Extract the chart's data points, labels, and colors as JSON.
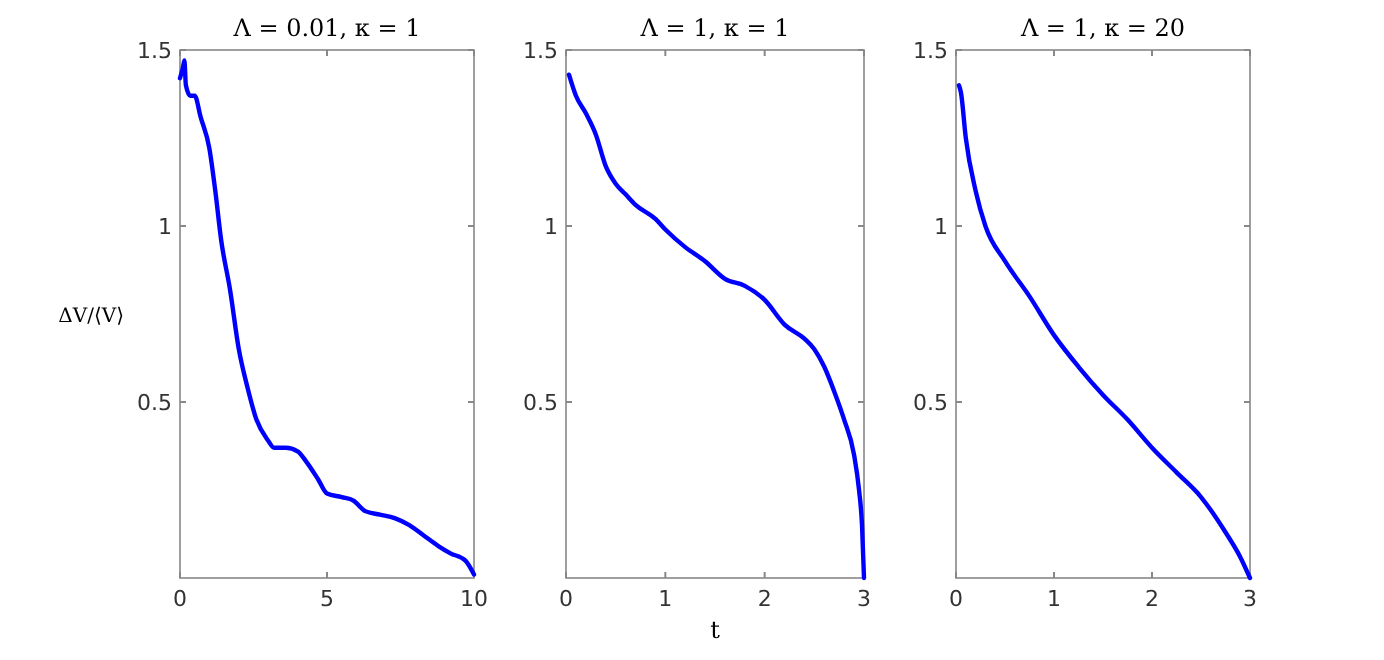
{
  "chart_data": [
    {
      "type": "line",
      "title": "Λ = 0.01, κ = 1",
      "ylabel": "ΔV/⟨V⟩",
      "xlim": [
        0,
        10
      ],
      "xticks": [
        0,
        5,
        10
      ],
      "ylim": [
        0,
        1.5
      ],
      "yticks": [
        0.5,
        1,
        1.5
      ],
      "grid": false,
      "series": [
        {
          "color": "#0000ff",
          "x": [
            0,
            0.1,
            0.15,
            0.2,
            0.35,
            0.5,
            0.7,
            1.0,
            1.2,
            1.4,
            1.7,
            2.0,
            2.3,
            2.6,
            3.0,
            3.2,
            3.6,
            4.0,
            4.3,
            4.7,
            5.0,
            5.5,
            5.9,
            6.3,
            6.8,
            7.3,
            7.8,
            8.3,
            8.8,
            9.2,
            9.7,
            10
          ],
          "values": [
            1.42,
            1.45,
            1.47,
            1.4,
            1.37,
            1.37,
            1.31,
            1.22,
            1.1,
            0.96,
            0.82,
            0.65,
            0.54,
            0.45,
            0.39,
            0.37,
            0.37,
            0.36,
            0.33,
            0.28,
            0.24,
            0.23,
            0.22,
            0.19,
            0.18,
            0.17,
            0.15,
            0.12,
            0.09,
            0.07,
            0.05,
            0.01
          ]
        }
      ]
    },
    {
      "type": "line",
      "title": "Λ = 1, κ = 1",
      "xlabel": "t",
      "xlim": [
        0,
        3
      ],
      "xticks": [
        0,
        1,
        2,
        3
      ],
      "ylim": [
        0,
        1.5
      ],
      "yticks": [
        0.5,
        1,
        1.5
      ],
      "grid": false,
      "series": [
        {
          "color": "#0000ff",
          "x": [
            0.03,
            0.1,
            0.2,
            0.3,
            0.4,
            0.5,
            0.6,
            0.7,
            0.9,
            1.0,
            1.2,
            1.4,
            1.6,
            1.8,
            2.0,
            2.2,
            2.4,
            2.5,
            2.6,
            2.7,
            2.8,
            2.9,
            2.95,
            2.98,
            3.0
          ],
          "values": [
            1.43,
            1.37,
            1.32,
            1.26,
            1.17,
            1.12,
            1.09,
            1.06,
            1.02,
            0.99,
            0.94,
            0.9,
            0.85,
            0.83,
            0.79,
            0.72,
            0.68,
            0.65,
            0.6,
            0.53,
            0.45,
            0.35,
            0.25,
            0.15,
            0.0
          ]
        }
      ]
    },
    {
      "type": "line",
      "title": "Λ = 1, κ = 20",
      "xlim": [
        0,
        3
      ],
      "xticks": [
        0,
        1,
        2,
        3
      ],
      "ylim": [
        0,
        1.5
      ],
      "yticks": [
        0.5,
        1,
        1.5
      ],
      "grid": false,
      "series": [
        {
          "color": "#0000ff",
          "x": [
            0.03,
            0.05,
            0.1,
            0.2,
            0.3,
            0.5,
            0.75,
            1.0,
            1.25,
            1.5,
            1.75,
            2.0,
            2.25,
            2.5,
            2.75,
            2.9,
            3.0
          ],
          "values": [
            1.4,
            1.38,
            1.25,
            1.1,
            1.0,
            0.9,
            0.8,
            0.69,
            0.6,
            0.52,
            0.45,
            0.37,
            0.3,
            0.23,
            0.13,
            0.06,
            0.0
          ]
        }
      ]
    }
  ]
}
